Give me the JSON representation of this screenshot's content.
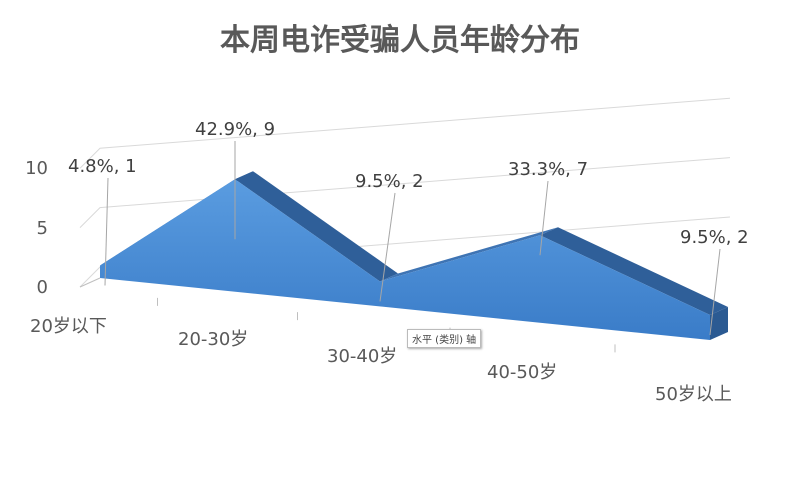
{
  "chart_data": {
    "type": "area",
    "style": "3d",
    "title": "本周电诈受骗人员年龄分布",
    "categories": [
      "20岁以下",
      "20-30岁",
      "30-40岁",
      "40-50岁",
      "50岁以上"
    ],
    "values": [
      1,
      9,
      2,
      7,
      2
    ],
    "percents": [
      "4.8%",
      "42.9%",
      "9.5%",
      "33.3%",
      "9.5%"
    ],
    "data_labels": [
      "4.8%, 1",
      "42.9%, 9",
      "9.5%, 2",
      "33.3%, 7",
      "9.5%, 2"
    ],
    "y_ticks": [
      "0",
      "5",
      "10"
    ],
    "ylim": [
      0,
      10
    ],
    "grid": true,
    "color": "#4a8fd6",
    "tooltip": "水平 (类别) 轴"
  }
}
